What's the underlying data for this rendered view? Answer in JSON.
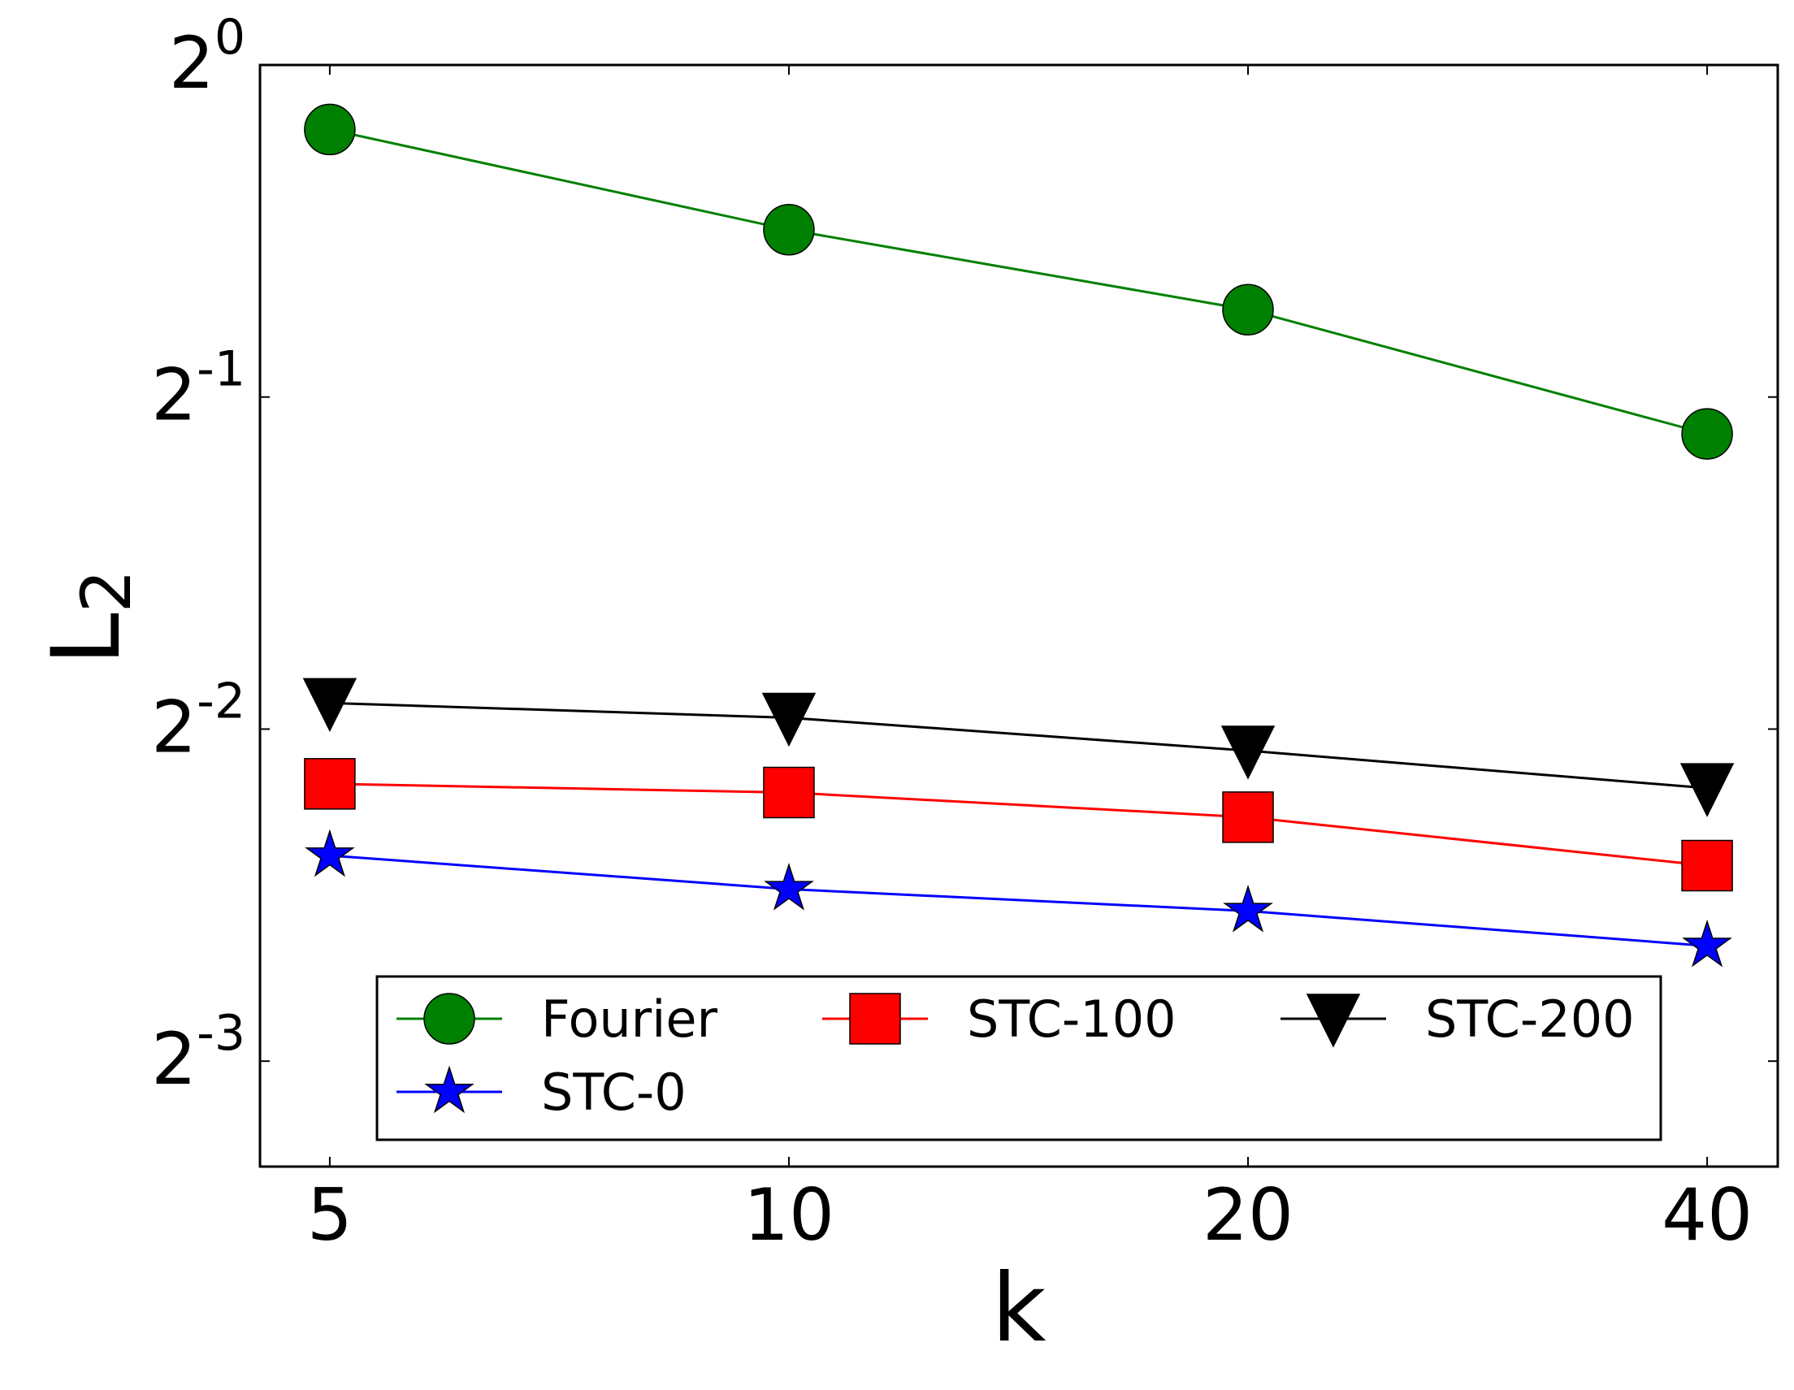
{
  "chart_data": {
    "type": "line",
    "xlabel": "k",
    "ylabel": "L",
    "ylabel_sub": "2",
    "x_scale": "log2",
    "y_scale": "log2",
    "x": [
      5,
      10,
      20,
      40
    ],
    "x_tick_labels": [
      "5",
      "10",
      "20",
      "40"
    ],
    "xlim": [
      4.5,
      44.5
    ],
    "y_ticks": [
      {
        "base": "2",
        "exp": "0",
        "value": 1.0
      },
      {
        "base": "2",
        "exp": "-1",
        "value": 0.5
      },
      {
        "base": "2",
        "exp": "-2",
        "value": 0.25
      },
      {
        "base": "2",
        "exp": "-3",
        "value": 0.125
      }
    ],
    "ylim": [
      0.1003,
      1.0
    ],
    "series": [
      {
        "name": "Fourier",
        "color": "#008000",
        "marker": "circle",
        "values": [
          0.874,
          0.709,
          0.6,
          0.463
        ]
      },
      {
        "name": "STC-0",
        "color": "#0000ff",
        "marker": "star",
        "values": [
          0.192,
          0.179,
          0.171,
          0.159
        ]
      },
      {
        "name": "STC-100",
        "color": "#ff0000",
        "marker": "square",
        "values": [
          0.223,
          0.219,
          0.208,
          0.188
        ]
      },
      {
        "name": "STC-200",
        "color": "#000000",
        "marker": "triangle-down",
        "values": [
          0.264,
          0.256,
          0.239,
          0.221
        ]
      }
    ],
    "legend": {
      "location": "bottom",
      "columns": 3,
      "order": [
        "Fourier",
        "STC-100",
        "STC-200",
        "STC-0"
      ]
    }
  }
}
